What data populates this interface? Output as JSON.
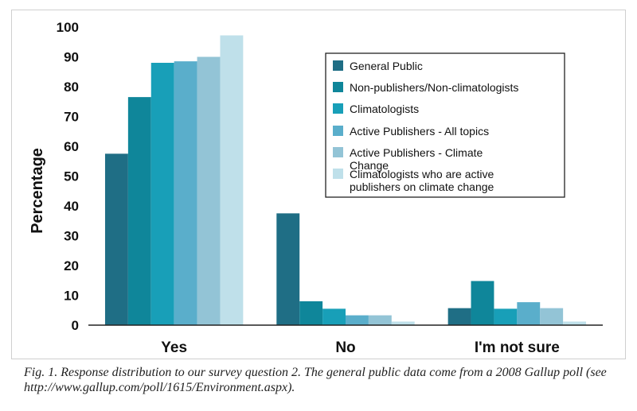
{
  "chart_data": {
    "type": "bar",
    "title": "",
    "xlabel": "",
    "ylabel": "Percentage",
    "ylim": [
      0,
      100
    ],
    "yticks": [
      0,
      10,
      20,
      30,
      40,
      50,
      60,
      70,
      80,
      90,
      100
    ],
    "grid": false,
    "legend_position": "top-right",
    "categories": [
      "Yes",
      "No",
      "I'm not sure"
    ],
    "series": [
      {
        "name": "General Public",
        "color": "#1f6e85",
        "values": [
          57.5,
          37.5,
          5.7
        ]
      },
      {
        "name": "Non-publishers/Non-climatologists",
        "color": "#0f869a",
        "values": [
          76.5,
          8.0,
          14.8
        ]
      },
      {
        "name": "Climatologists",
        "color": "#189fb8",
        "values": [
          88.0,
          5.5,
          5.5
        ]
      },
      {
        "name": "Active Publishers - All topics",
        "color": "#5aaecb",
        "values": [
          88.5,
          3.3,
          7.7
        ]
      },
      {
        "name": "Active Publishers - Climate Change",
        "color": "#93c4d6",
        "values": [
          90.0,
          3.3,
          5.7
        ]
      },
      {
        "name": "Climatologists who are active publishers on climate change",
        "color": "#bfe0ea",
        "values": [
          97.2,
          1.2,
          1.2
        ]
      }
    ]
  },
  "caption": "Fig. 1. Response distribution to our survey question 2. The general public data come from a 2008 Gallup poll (see http://www.gallup.com/poll/1615/Environment.aspx)."
}
